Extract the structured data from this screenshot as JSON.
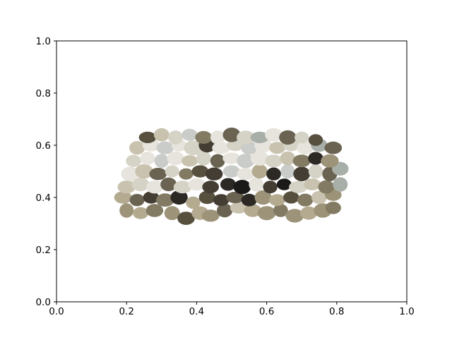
{
  "chart_data": {
    "type": "scatter",
    "title": "",
    "xlabel": "",
    "ylabel": "",
    "xlim": [
      0.0,
      1.0
    ],
    "ylim": [
      0.0,
      1.0
    ],
    "grid": false,
    "legend": "none",
    "x_ticks": [
      {
        "value": 0.0,
        "label": "0.0"
      },
      {
        "value": 0.2,
        "label": "0.2"
      },
      {
        "value": 0.4,
        "label": "0.4"
      },
      {
        "value": 0.6,
        "label": "0.6"
      },
      {
        "value": 0.8,
        "label": "0.8"
      },
      {
        "value": 1.0,
        "label": "1.0"
      }
    ],
    "y_ticks": [
      {
        "value": 0.0,
        "label": "0.0"
      },
      {
        "value": 0.2,
        "label": "0.2"
      },
      {
        "value": 0.4,
        "label": "0.4"
      },
      {
        "value": 0.6,
        "label": "0.6"
      },
      {
        "value": 0.8,
        "label": "0.8"
      },
      {
        "value": 1.0,
        "label": "1.0"
      }
    ],
    "marker": "ellipse",
    "palette": [
      "#e6e4dc",
      "#d5d2c6",
      "#c8c2ae",
      "#b3aa90",
      "#9c9378",
      "#837a63",
      "#6b6352",
      "#57503f",
      "#433d33",
      "#2c2925",
      "#1b1a18",
      "#c9ccc9",
      "#a8aea8"
    ],
    "cluster_region": {
      "x_range": [
        0.18,
        0.82
      ],
      "y_range": [
        0.32,
        0.65
      ]
    },
    "points": [
      {
        "x": 0.2,
        "y": 0.35,
        "c": 4
      },
      {
        "x": 0.24,
        "y": 0.34,
        "c": 3
      },
      {
        "x": 0.28,
        "y": 0.35,
        "c": 5
      },
      {
        "x": 0.33,
        "y": 0.34,
        "c": 4
      },
      {
        "x": 0.37,
        "y": 0.32,
        "c": 7
      },
      {
        "x": 0.41,
        "y": 0.34,
        "c": 3
      },
      {
        "x": 0.44,
        "y": 0.33,
        "c": 4
      },
      {
        "x": 0.48,
        "y": 0.35,
        "c": 6
      },
      {
        "x": 0.52,
        "y": 0.36,
        "c": 2
      },
      {
        "x": 0.56,
        "y": 0.35,
        "c": 3
      },
      {
        "x": 0.6,
        "y": 0.34,
        "c": 4
      },
      {
        "x": 0.64,
        "y": 0.35,
        "c": 5
      },
      {
        "x": 0.68,
        "y": 0.33,
        "c": 4
      },
      {
        "x": 0.72,
        "y": 0.34,
        "c": 3
      },
      {
        "x": 0.76,
        "y": 0.35,
        "c": 4
      },
      {
        "x": 0.79,
        "y": 0.36,
        "c": 5
      },
      {
        "x": 0.19,
        "y": 0.4,
        "c": 3
      },
      {
        "x": 0.23,
        "y": 0.39,
        "c": 6
      },
      {
        "x": 0.27,
        "y": 0.4,
        "c": 8
      },
      {
        "x": 0.31,
        "y": 0.39,
        "c": 5
      },
      {
        "x": 0.35,
        "y": 0.4,
        "c": 9
      },
      {
        "x": 0.39,
        "y": 0.38,
        "c": 3
      },
      {
        "x": 0.43,
        "y": 0.4,
        "c": 7
      },
      {
        "x": 0.47,
        "y": 0.39,
        "c": 8
      },
      {
        "x": 0.51,
        "y": 0.4,
        "c": 6
      },
      {
        "x": 0.55,
        "y": 0.39,
        "c": 9
      },
      {
        "x": 0.59,
        "y": 0.4,
        "c": 4
      },
      {
        "x": 0.63,
        "y": 0.39,
        "c": 3
      },
      {
        "x": 0.67,
        "y": 0.4,
        "c": 7
      },
      {
        "x": 0.71,
        "y": 0.39,
        "c": 5
      },
      {
        "x": 0.75,
        "y": 0.4,
        "c": 2
      },
      {
        "x": 0.79,
        "y": 0.41,
        "c": 4
      },
      {
        "x": 0.2,
        "y": 0.44,
        "c": 2
      },
      {
        "x": 0.24,
        "y": 0.45,
        "c": 1
      },
      {
        "x": 0.28,
        "y": 0.44,
        "c": 0
      },
      {
        "x": 0.32,
        "y": 0.45,
        "c": 6
      },
      {
        "x": 0.36,
        "y": 0.44,
        "c": 1
      },
      {
        "x": 0.4,
        "y": 0.45,
        "c": 0
      },
      {
        "x": 0.44,
        "y": 0.44,
        "c": 8
      },
      {
        "x": 0.49,
        "y": 0.45,
        "c": 9
      },
      {
        "x": 0.53,
        "y": 0.44,
        "c": 10
      },
      {
        "x": 0.57,
        "y": 0.45,
        "c": 0
      },
      {
        "x": 0.61,
        "y": 0.44,
        "c": 8
      },
      {
        "x": 0.65,
        "y": 0.45,
        "c": 10
      },
      {
        "x": 0.69,
        "y": 0.44,
        "c": 1
      },
      {
        "x": 0.73,
        "y": 0.45,
        "c": 2
      },
      {
        "x": 0.77,
        "y": 0.44,
        "c": 5
      },
      {
        "x": 0.81,
        "y": 0.45,
        "c": 12
      },
      {
        "x": 0.21,
        "y": 0.49,
        "c": 0
      },
      {
        "x": 0.25,
        "y": 0.5,
        "c": 2
      },
      {
        "x": 0.29,
        "y": 0.49,
        "c": 6
      },
      {
        "x": 0.33,
        "y": 0.5,
        "c": 1
      },
      {
        "x": 0.37,
        "y": 0.49,
        "c": 5
      },
      {
        "x": 0.41,
        "y": 0.5,
        "c": 7
      },
      {
        "x": 0.45,
        "y": 0.49,
        "c": 8
      },
      {
        "x": 0.5,
        "y": 0.5,
        "c": 11
      },
      {
        "x": 0.54,
        "y": 0.49,
        "c": 0
      },
      {
        "x": 0.58,
        "y": 0.5,
        "c": 3
      },
      {
        "x": 0.62,
        "y": 0.49,
        "c": 9
      },
      {
        "x": 0.66,
        "y": 0.5,
        "c": 11
      },
      {
        "x": 0.7,
        "y": 0.49,
        "c": 8
      },
      {
        "x": 0.74,
        "y": 0.5,
        "c": 1
      },
      {
        "x": 0.78,
        "y": 0.49,
        "c": 6
      },
      {
        "x": 0.81,
        "y": 0.51,
        "c": 12
      },
      {
        "x": 0.22,
        "y": 0.54,
        "c": 1
      },
      {
        "x": 0.26,
        "y": 0.55,
        "c": 0
      },
      {
        "x": 0.3,
        "y": 0.54,
        "c": 11
      },
      {
        "x": 0.34,
        "y": 0.55,
        "c": 0
      },
      {
        "x": 0.38,
        "y": 0.54,
        "c": 2
      },
      {
        "x": 0.42,
        "y": 0.55,
        "c": 1
      },
      {
        "x": 0.46,
        "y": 0.54,
        "c": 6
      },
      {
        "x": 0.5,
        "y": 0.55,
        "c": 0
      },
      {
        "x": 0.54,
        "y": 0.54,
        "c": 11
      },
      {
        "x": 0.58,
        "y": 0.55,
        "c": 0
      },
      {
        "x": 0.62,
        "y": 0.54,
        "c": 1
      },
      {
        "x": 0.66,
        "y": 0.55,
        "c": 2
      },
      {
        "x": 0.7,
        "y": 0.54,
        "c": 5
      },
      {
        "x": 0.74,
        "y": 0.55,
        "c": 9
      },
      {
        "x": 0.78,
        "y": 0.54,
        "c": 4
      },
      {
        "x": 0.23,
        "y": 0.59,
        "c": 2
      },
      {
        "x": 0.27,
        "y": 0.6,
        "c": 0
      },
      {
        "x": 0.31,
        "y": 0.59,
        "c": 11
      },
      {
        "x": 0.35,
        "y": 0.6,
        "c": 0
      },
      {
        "x": 0.39,
        "y": 0.59,
        "c": 1
      },
      {
        "x": 0.43,
        "y": 0.6,
        "c": 8
      },
      {
        "x": 0.47,
        "y": 0.59,
        "c": 0
      },
      {
        "x": 0.51,
        "y": 0.6,
        "c": 1
      },
      {
        "x": 0.55,
        "y": 0.59,
        "c": 11
      },
      {
        "x": 0.59,
        "y": 0.6,
        "c": 0
      },
      {
        "x": 0.63,
        "y": 0.59,
        "c": 2
      },
      {
        "x": 0.67,
        "y": 0.6,
        "c": 1
      },
      {
        "x": 0.71,
        "y": 0.59,
        "c": 0
      },
      {
        "x": 0.75,
        "y": 0.6,
        "c": 12
      },
      {
        "x": 0.79,
        "y": 0.59,
        "c": 6
      },
      {
        "x": 0.26,
        "y": 0.63,
        "c": 7
      },
      {
        "x": 0.3,
        "y": 0.64,
        "c": 2
      },
      {
        "x": 0.34,
        "y": 0.63,
        "c": 1
      },
      {
        "x": 0.38,
        "y": 0.64,
        "c": 11
      },
      {
        "x": 0.42,
        "y": 0.63,
        "c": 5
      },
      {
        "x": 0.46,
        "y": 0.63,
        "c": 0
      },
      {
        "x": 0.5,
        "y": 0.64,
        "c": 6
      },
      {
        "x": 0.54,
        "y": 0.63,
        "c": 1
      },
      {
        "x": 0.58,
        "y": 0.63,
        "c": 12
      },
      {
        "x": 0.62,
        "y": 0.64,
        "c": 0
      },
      {
        "x": 0.66,
        "y": 0.63,
        "c": 6
      },
      {
        "x": 0.7,
        "y": 0.63,
        "c": 1
      },
      {
        "x": 0.74,
        "y": 0.62,
        "c": 7
      }
    ]
  }
}
